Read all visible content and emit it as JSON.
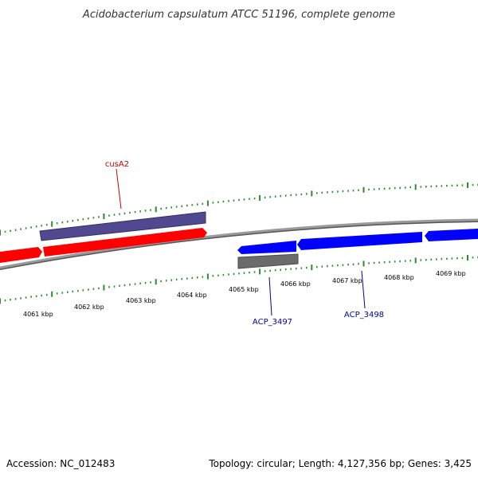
{
  "title": "Acidobacterium capsulatum ATCC 51196, complete genome",
  "footer": {
    "accession": "Accession: NC_012483",
    "summary": "Topology: circular; Length: 4,127,356 bp; Genes: 3,425"
  },
  "scale_labels": [
    "4061 kbp",
    "4062 kbp",
    "4063 kbp",
    "4064 kbp",
    "4065 kbp",
    "4066 kbp",
    "4067 kbp",
    "4068 kbp",
    "4069 kbp"
  ],
  "gene_labels": {
    "cusA2": "cusA2",
    "acp3497": "ACP_3497",
    "acp3498": "ACP_3498"
  },
  "colors": {
    "forward_cds": "#ff0000",
    "reverse_cds": "#0000ff",
    "other_feature": "#50498f",
    "pseudo_feature": "#6b6b6b",
    "tick": "#2e8b2e",
    "backbone": "#8a8a8a",
    "forward_label": "#cc0000",
    "reverse_label": "#0000aa"
  }
}
